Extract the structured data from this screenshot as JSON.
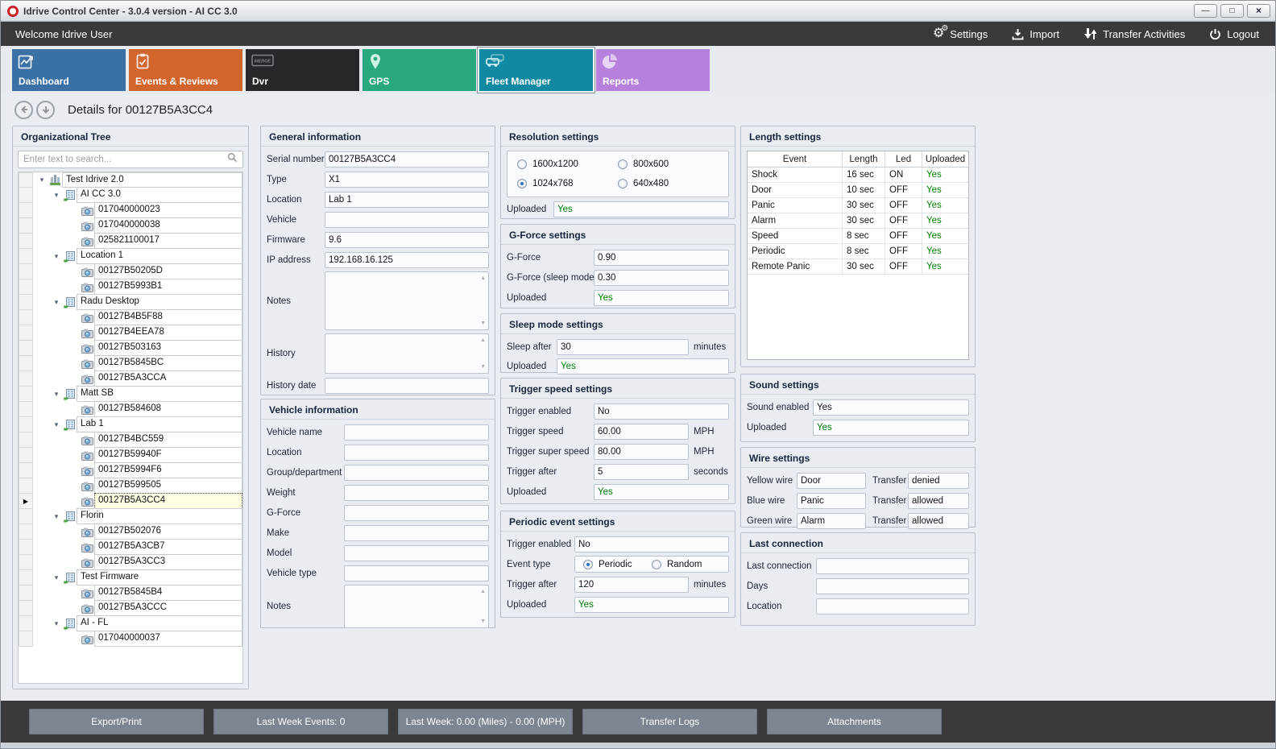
{
  "window": {
    "title": "Idrive Control Center - 3.0.4 version - AI CC 3.0",
    "controls": [
      {
        "name": "minimize-button",
        "glyph": "—"
      },
      {
        "name": "maximize-button",
        "glyph": "□"
      },
      {
        "name": "close-button",
        "glyph": "×"
      }
    ]
  },
  "toolbar": {
    "welcome_text": "Welcome Idrive User",
    "actions": [
      {
        "label": "Settings",
        "icon": "gear-icon"
      },
      {
        "label": "Import",
        "icon": "download-icon"
      },
      {
        "label": "Transfer Activities",
        "icon": "transfer-arrows-icon"
      },
      {
        "label": "Logout",
        "icon": "power-icon"
      }
    ]
  },
  "nav_tiles": [
    {
      "label": "Dashboard",
      "color": "#3a70a6",
      "icon": "line-chart-icon",
      "selected": false
    },
    {
      "label": "Events & Reviews",
      "color": "#d2652c",
      "icon": "clipboard-check-icon",
      "selected": false
    },
    {
      "label": "Dvr",
      "color": "#26282c",
      "icon": "merge-logo-icon",
      "selected": false
    },
    {
      "label": "GPS",
      "color": "#29a87e",
      "icon": "map-pin-icon",
      "selected": false
    },
    {
      "label": "Fleet Manager",
      "color": "#1289a2",
      "icon": "vehicles-icon",
      "selected": true
    },
    {
      "label": "Reports",
      "color": "#b581dd",
      "icon": "pie-chart-icon",
      "selected": false
    }
  ],
  "details_header": {
    "title": "Details for 00127B5A3CC4"
  },
  "org_tree": {
    "title": "Organizational Tree",
    "search_placeholder": "Enter text to search...",
    "items": [
      {
        "level": 0,
        "type": "root",
        "label": "Test Idrive 2.0"
      },
      {
        "level": 1,
        "type": "group",
        "label": "AI CC 3.0"
      },
      {
        "level": 2,
        "type": "device",
        "label": "017040000023"
      },
      {
        "level": 2,
        "type": "device",
        "label": "017040000038"
      },
      {
        "level": 2,
        "type": "device",
        "label": "025821100017"
      },
      {
        "level": 1,
        "type": "group",
        "label": "Location 1"
      },
      {
        "level": 2,
        "type": "device",
        "label": "00127B50205D"
      },
      {
        "level": 2,
        "type": "device",
        "label": "00127B5993B1"
      },
      {
        "level": 1,
        "type": "group",
        "label": "Radu Desktop"
      },
      {
        "level": 2,
        "type": "device",
        "label": "00127B4B5F88"
      },
      {
        "level": 2,
        "type": "device",
        "label": "00127B4EEA78"
      },
      {
        "level": 2,
        "type": "device",
        "label": "00127B503163"
      },
      {
        "level": 2,
        "type": "device",
        "label": "00127B5845BC"
      },
      {
        "level": 2,
        "type": "device",
        "label": "00127B5A3CCA"
      },
      {
        "level": 1,
        "type": "group",
        "label": "Matt SB"
      },
      {
        "level": 2,
        "type": "device",
        "label": "00127B584608"
      },
      {
        "level": 1,
        "type": "group",
        "label": "Lab 1"
      },
      {
        "level": 2,
        "type": "device",
        "label": "00127B4BC559"
      },
      {
        "level": 2,
        "type": "device",
        "label": "00127B59940F"
      },
      {
        "level": 2,
        "type": "device",
        "label": "00127B5994F6"
      },
      {
        "level": 2,
        "type": "device",
        "label": "00127B599505"
      },
      {
        "level": 2,
        "type": "device",
        "label": "00127B5A3CC4",
        "selected": true
      },
      {
        "level": 1,
        "type": "group",
        "label": "Florin"
      },
      {
        "level": 2,
        "type": "device",
        "label": "00127B502076"
      },
      {
        "level": 2,
        "type": "device",
        "label": "00127B5A3CB7"
      },
      {
        "level": 2,
        "type": "device",
        "label": "00127B5A3CC3"
      },
      {
        "level": 1,
        "type": "group",
        "label": "Test Firmware"
      },
      {
        "level": 2,
        "type": "device",
        "label": "00127B5845B4"
      },
      {
        "level": 2,
        "type": "device",
        "label": "00127B5A3CCC"
      },
      {
        "level": 1,
        "type": "group",
        "label": "AI - FL"
      },
      {
        "level": 2,
        "type": "device",
        "label": "017040000037"
      }
    ]
  },
  "panels": {
    "general_info": {
      "title": "General information",
      "rows": [
        {
          "kind": "field",
          "label": "Serial number",
          "value": "00127B5A3CC4"
        },
        {
          "kind": "field",
          "label": "Type",
          "value": "X1"
        },
        {
          "kind": "field",
          "label": "Location",
          "value": "Lab 1"
        },
        {
          "kind": "field",
          "label": "Vehicle",
          "value": ""
        },
        {
          "kind": "field",
          "label": "Firmware",
          "value": "9.6"
        },
        {
          "kind": "field",
          "label": "IP address",
          "value": "192.168.16.125"
        },
        {
          "kind": "textarea",
          "label": "Notes",
          "value": ""
        },
        {
          "kind": "textarea",
          "label": "History",
          "value": ""
        },
        {
          "kind": "field",
          "label": "History date",
          "value": ""
        }
      ]
    },
    "vehicle_info": {
      "title": "Vehicle information",
      "rows": [
        {
          "kind": "field",
          "label": "Vehicle name",
          "value": ""
        },
        {
          "kind": "field",
          "label": "Location",
          "value": ""
        },
        {
          "kind": "field",
          "label": "Group/department",
          "value": ""
        },
        {
          "kind": "field",
          "label": "Weight",
          "value": ""
        },
        {
          "kind": "field",
          "label": "G-Force",
          "value": ""
        },
        {
          "kind": "field",
          "label": "Make",
          "value": ""
        },
        {
          "kind": "field",
          "label": "Model",
          "value": ""
        },
        {
          "kind": "field",
          "label": "Vehicle type",
          "value": ""
        },
        {
          "kind": "textarea",
          "label": "Notes",
          "value": ""
        }
      ]
    },
    "resolution": {
      "title": "Resolution settings",
      "rows": [
        {
          "kind": "radiobox",
          "options": [
            {
              "label": "1600x1200",
              "selected": false
            },
            {
              "label": "800x600",
              "selected": false
            },
            {
              "label": "1024x768",
              "selected": true
            },
            {
              "label": "640x480",
              "selected": false
            }
          ]
        },
        {
          "kind": "field",
          "label": "Uploaded",
          "value": "Yes",
          "green": true
        }
      ]
    },
    "gforce": {
      "title": "G-Force settings",
      "rows": [
        {
          "kind": "field",
          "label": "G-Force",
          "value": "0.90"
        },
        {
          "kind": "field",
          "label": "G-Force (sleep mode)",
          "value": "0.30"
        },
        {
          "kind": "field",
          "label": "Uploaded",
          "value": "Yes",
          "green": true
        }
      ]
    },
    "sleep": {
      "title": "Sleep mode settings",
      "rows": [
        {
          "kind": "field",
          "label": "Sleep after",
          "value": "30",
          "unit": "minutes"
        },
        {
          "kind": "field",
          "label": "Uploaded",
          "value": "Yes",
          "green": true
        }
      ]
    },
    "trigger_speed": {
      "title": "Trigger speed settings",
      "rows": [
        {
          "kind": "field",
          "label": "Trigger enabled",
          "value": "No"
        },
        {
          "kind": "field",
          "label": "Trigger speed",
          "value": "60.00",
          "unit": "MPH"
        },
        {
          "kind": "field",
          "label": "Trigger super speed",
          "value": "80.00",
          "unit": "MPH"
        },
        {
          "kind": "field",
          "label": "Trigger after",
          "value": "5",
          "unit": "seconds"
        },
        {
          "kind": "field",
          "label": "Uploaded",
          "value": "Yes",
          "green": true
        }
      ]
    },
    "periodic": {
      "title": "Periodic event settings",
      "rows": [
        {
          "kind": "field",
          "label": "Trigger enabled",
          "value": "No"
        },
        {
          "kind": "radioline",
          "label": "Event type",
          "options": [
            {
              "label": "Periodic",
              "selected": true
            },
            {
              "label": "Random",
              "selected": false
            }
          ]
        },
        {
          "kind": "field",
          "label": "Trigger after",
          "value": "120",
          "unit": "minutes"
        },
        {
          "kind": "field",
          "label": "Uploaded",
          "value": "Yes",
          "green": true
        }
      ]
    },
    "length": {
      "title": "Length settings",
      "table": {
        "columns": [
          "Event",
          "Length",
          "Led",
          "Uploaded"
        ],
        "rows": [
          [
            "Shock",
            "16 sec",
            "ON",
            "Yes"
          ],
          [
            "Door",
            "10 sec",
            "OFF",
            "Yes"
          ],
          [
            "Panic",
            "30 sec",
            "OFF",
            "Yes"
          ],
          [
            "Alarm",
            "30 sec",
            "OFF",
            "Yes"
          ],
          [
            "Speed",
            "8 sec",
            "OFF",
            "Yes"
          ],
          [
            "Periodic",
            "8 sec",
            "OFF",
            "Yes"
          ],
          [
            "Remote Panic",
            "30 sec",
            "OFF",
            "Yes"
          ]
        ]
      }
    },
    "sound": {
      "title": "Sound settings",
      "rows": [
        {
          "kind": "field",
          "label": "Sound enabled",
          "value": "Yes"
        },
        {
          "kind": "field",
          "label": "Uploaded",
          "value": "Yes",
          "green": true
        }
      ]
    },
    "wire": {
      "title": "Wire settings",
      "rows": [
        {
          "kind": "pair",
          "label": "Yellow wire",
          "value": "Door",
          "label2": "Transfer",
          "value2": "denied"
        },
        {
          "kind": "pair",
          "label": "Blue wire",
          "value": "Panic",
          "label2": "Transfer",
          "value2": "allowed"
        },
        {
          "kind": "pair",
          "label": "Green wire",
          "value": "Alarm",
          "label2": "Transfer",
          "value2": "allowed"
        }
      ]
    },
    "last_connection": {
      "title": "Last connection",
      "rows": [
        {
          "kind": "field",
          "label": "Last connection",
          "value": ""
        },
        {
          "kind": "field",
          "label": "Days",
          "value": ""
        },
        {
          "kind": "field",
          "label": "Location",
          "value": ""
        }
      ]
    }
  },
  "bottom_bar": {
    "buttons": [
      "Export/Print",
      "Last Week Events: 0",
      "Last Week: 0.00 (Miles) - 0.00 (MPH)",
      "Transfer Logs",
      "Attachments"
    ]
  },
  "theme": {
    "status_green": "#008000",
    "selected_row_bg": "#fffce1",
    "toolbar_bg": "#3a3a3c"
  }
}
